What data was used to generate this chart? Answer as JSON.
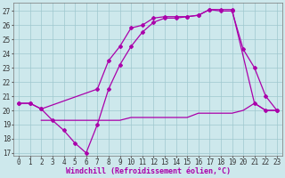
{
  "background_color": "#cde8ec",
  "grid_color": "#9fc8ce",
  "line_color": "#aa00aa",
  "marker": "D",
  "marker_size": 2,
  "line_width": 0.9,
  "xlabel": "Windchill (Refroidissement éolien,°C)",
  "xlabel_fontsize": 6,
  "tick_fontsize": 5.5,
  "ylim": [
    16.8,
    27.6
  ],
  "yticks": [
    17,
    18,
    19,
    20,
    21,
    22,
    23,
    24,
    25,
    26,
    27
  ],
  "xlim": [
    -0.5,
    23.5
  ],
  "xticks": [
    0,
    1,
    2,
    3,
    4,
    5,
    6,
    7,
    8,
    9,
    10,
    11,
    12,
    13,
    14,
    15,
    16,
    17,
    18,
    19,
    20,
    21,
    22,
    23
  ],
  "series1_x": [
    0,
    1,
    2,
    7,
    8,
    9,
    10,
    11,
    12,
    13,
    14,
    15,
    16,
    17,
    18,
    19,
    21,
    22,
    23
  ],
  "series1_y": [
    20.5,
    20.5,
    20.1,
    21.5,
    23.5,
    24.5,
    25.8,
    26.0,
    26.5,
    26.6,
    26.6,
    26.6,
    26.7,
    27.1,
    27.1,
    27.1,
    20.5,
    20.0,
    20.0
  ],
  "series2_x": [
    0,
    1,
    2,
    3,
    4,
    5,
    6,
    7,
    8,
    9,
    10,
    11,
    12,
    13,
    14,
    15,
    16,
    17,
    18,
    19,
    20,
    21,
    22,
    23
  ],
  "series2_y": [
    20.5,
    20.5,
    20.1,
    19.3,
    18.6,
    17.7,
    17.0,
    19.0,
    21.5,
    23.2,
    24.5,
    25.5,
    26.2,
    26.5,
    26.5,
    26.6,
    26.7,
    27.1,
    27.0,
    27.0,
    24.3,
    23.0,
    21.0,
    20.0
  ],
  "series3_x": [
    2,
    3,
    4,
    5,
    6,
    7,
    8,
    9,
    10,
    11,
    12,
    13,
    14,
    15,
    16,
    17,
    18,
    19,
    20,
    21,
    22,
    23
  ],
  "series3_y": [
    19.3,
    19.3,
    19.3,
    19.3,
    19.3,
    19.3,
    19.3,
    19.3,
    19.5,
    19.5,
    19.5,
    19.5,
    19.5,
    19.5,
    19.8,
    19.8,
    19.8,
    19.8,
    20.0,
    20.5,
    20.0,
    20.0
  ]
}
